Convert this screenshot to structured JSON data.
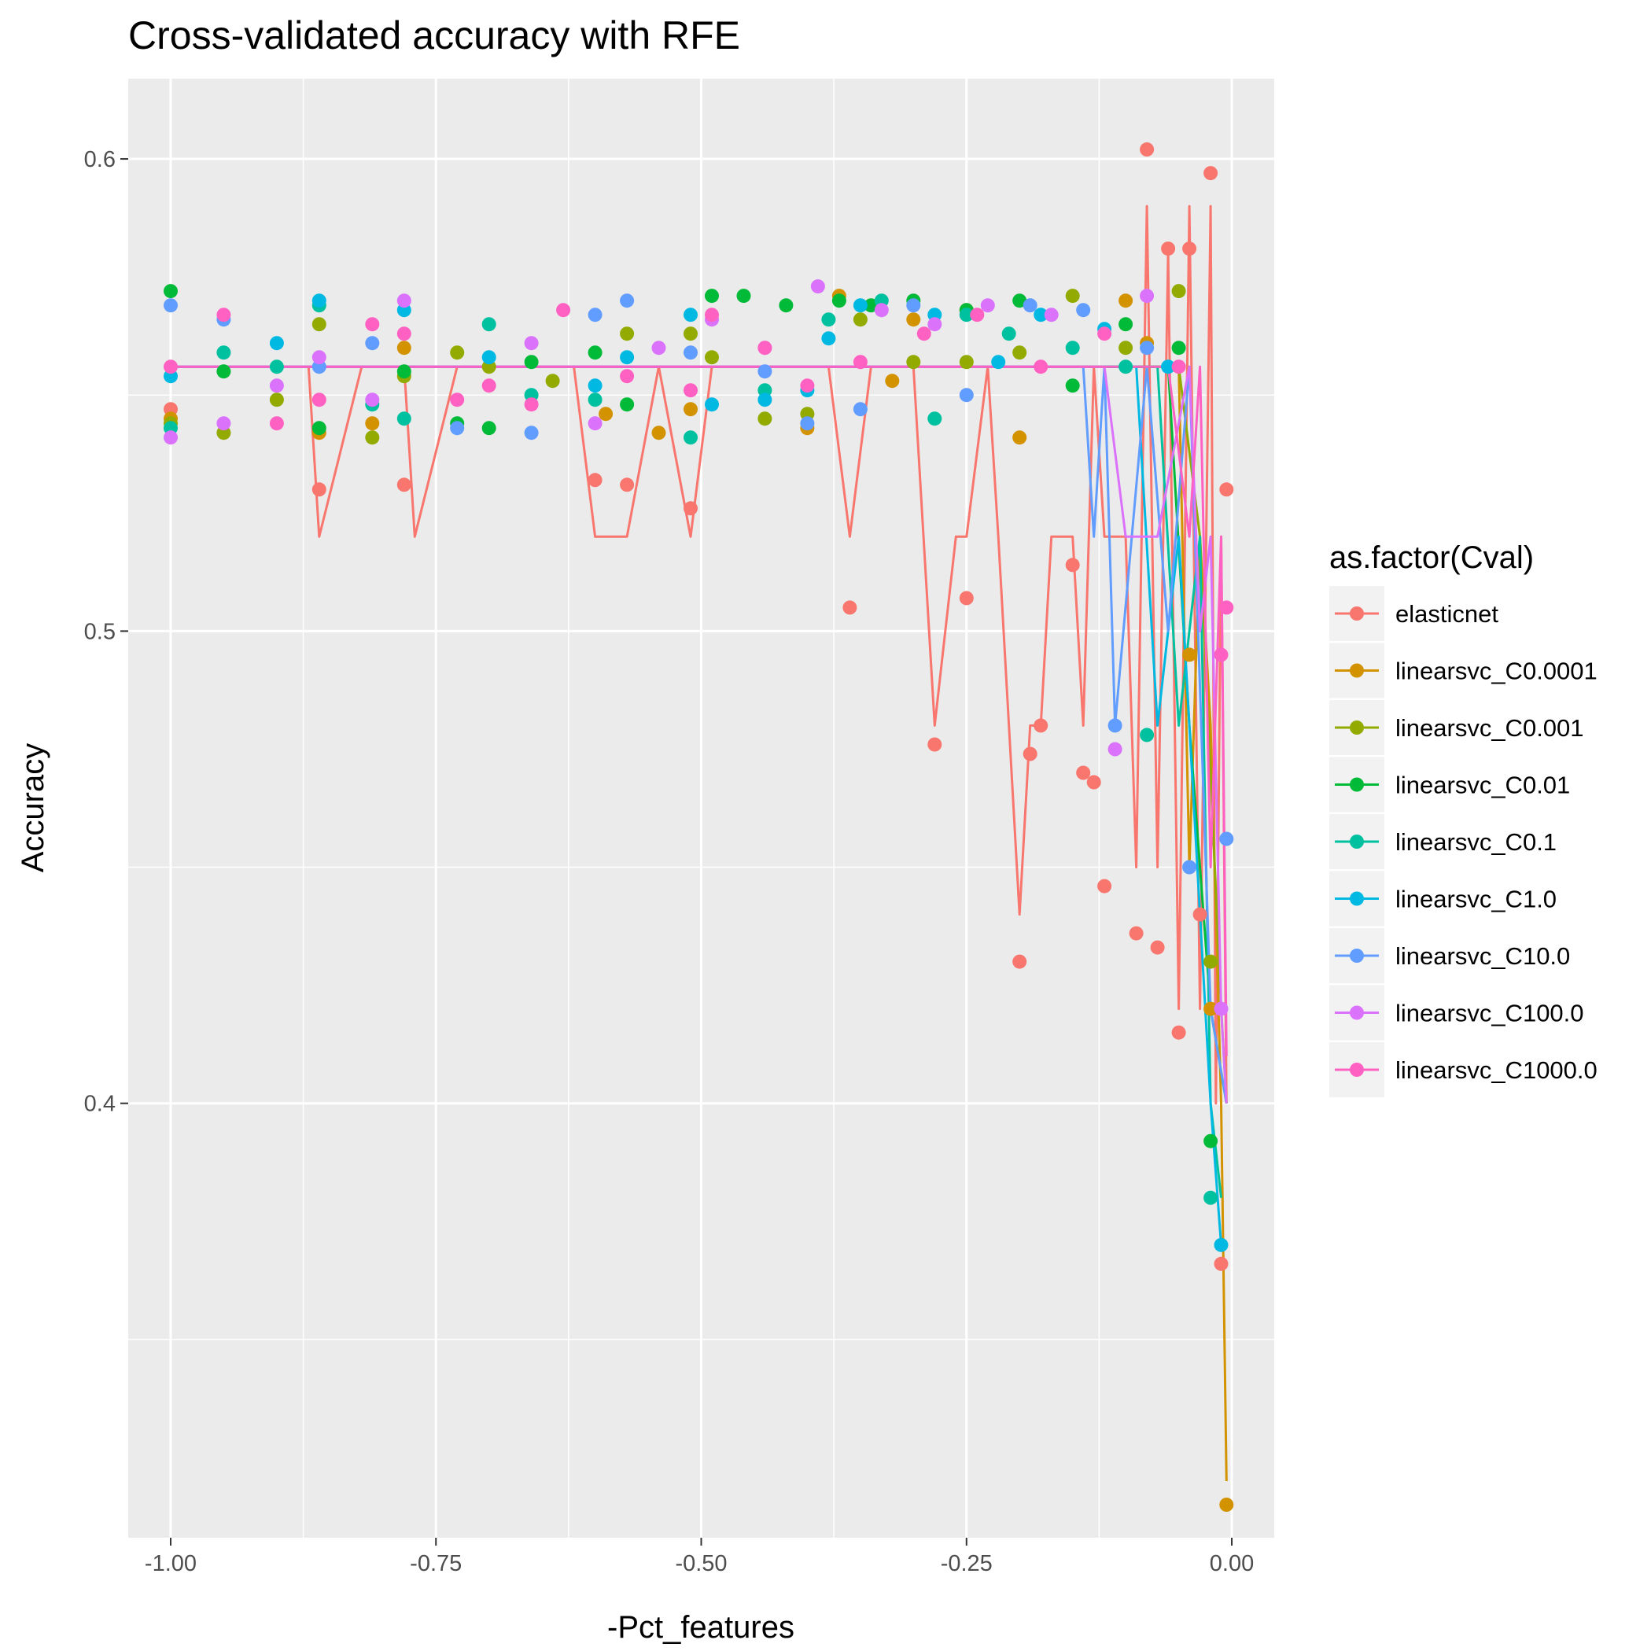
{
  "chart_data": {
    "type": "scatter",
    "title": "Cross-validated accuracy with RFE",
    "xlabel": "-Pct_features",
    "ylabel": "Accuracy",
    "xlim": [
      -1.04,
      0.04
    ],
    "ylim": [
      0.308,
      0.617
    ],
    "x_ticks": [
      -1.0,
      -0.75,
      -0.5,
      -0.25,
      0.0
    ],
    "x_tick_labels": [
      "-1.00",
      "-0.75",
      "-0.50",
      "-0.25",
      "0.00"
    ],
    "y_ticks": [
      0.4,
      0.5,
      0.6
    ],
    "y_tick_labels": [
      "0.4",
      "0.5",
      "0.6"
    ],
    "grid": true,
    "legend": {
      "title": "as.factor(Cval)",
      "position": "right"
    },
    "series": [
      {
        "name": "elasticnet",
        "color": "#F8766D",
        "line": [
          [
            -1.0,
            0.556
          ],
          [
            -0.87,
            0.556
          ],
          [
            -0.86,
            0.52
          ],
          [
            -0.82,
            0.556
          ],
          [
            -0.78,
            0.556
          ],
          [
            -0.77,
            0.52
          ],
          [
            -0.73,
            0.556
          ],
          [
            -0.62,
            0.556
          ],
          [
            -0.6,
            0.52
          ],
          [
            -0.57,
            0.52
          ],
          [
            -0.54,
            0.556
          ],
          [
            -0.51,
            0.52
          ],
          [
            -0.49,
            0.556
          ],
          [
            -0.38,
            0.556
          ],
          [
            -0.36,
            0.52
          ],
          [
            -0.34,
            0.556
          ],
          [
            -0.3,
            0.556
          ],
          [
            -0.28,
            0.48
          ],
          [
            -0.26,
            0.52
          ],
          [
            -0.25,
            0.52
          ],
          [
            -0.23,
            0.556
          ],
          [
            -0.22,
            0.52
          ],
          [
            -0.2,
            0.44
          ],
          [
            -0.19,
            0.48
          ],
          [
            -0.18,
            0.48
          ],
          [
            -0.17,
            0.52
          ],
          [
            -0.15,
            0.52
          ],
          [
            -0.14,
            0.48
          ],
          [
            -0.13,
            0.556
          ],
          [
            -0.12,
            0.52
          ],
          [
            -0.1,
            0.52
          ],
          [
            -0.09,
            0.45
          ],
          [
            -0.08,
            0.59
          ],
          [
            -0.07,
            0.45
          ],
          [
            -0.06,
            0.58
          ],
          [
            -0.05,
            0.42
          ],
          [
            -0.04,
            0.59
          ],
          [
            -0.03,
            0.42
          ],
          [
            -0.02,
            0.59
          ],
          [
            -0.015,
            0.4
          ],
          [
            -0.01,
            0.52
          ],
          [
            -0.005,
            0.4
          ]
        ],
        "points": [
          [
            -1.0,
            0.547
          ],
          [
            -0.86,
            0.53
          ],
          [
            -0.78,
            0.531
          ],
          [
            -0.6,
            0.532
          ],
          [
            -0.57,
            0.531
          ],
          [
            -0.51,
            0.526
          ],
          [
            -0.36,
            0.505
          ],
          [
            -0.28,
            0.476
          ],
          [
            -0.25,
            0.507
          ],
          [
            -0.2,
            0.43
          ],
          [
            -0.19,
            0.474
          ],
          [
            -0.18,
            0.48
          ],
          [
            -0.15,
            0.514
          ],
          [
            -0.14,
            0.47
          ],
          [
            -0.13,
            0.468
          ],
          [
            -0.12,
            0.446
          ],
          [
            -0.09,
            0.436
          ],
          [
            -0.08,
            0.602
          ],
          [
            -0.07,
            0.433
          ],
          [
            -0.06,
            0.581
          ],
          [
            -0.05,
            0.415
          ],
          [
            -0.04,
            0.581
          ],
          [
            -0.03,
            0.44
          ],
          [
            -0.02,
            0.597
          ],
          [
            -0.01,
            0.366
          ],
          [
            -0.005,
            0.53
          ]
        ]
      },
      {
        "name": "linearsvc_C0.0001",
        "color": "#D39200",
        "line": [
          [
            -1.0,
            0.556
          ],
          [
            -0.05,
            0.556
          ],
          [
            -0.04,
            0.45
          ],
          [
            -0.03,
            0.52
          ],
          [
            -0.02,
            0.48
          ],
          [
            -0.01,
            0.4
          ],
          [
            -0.005,
            0.32
          ]
        ],
        "points": [
          [
            -1.0,
            0.545
          ],
          [
            -0.86,
            0.542
          ],
          [
            -0.81,
            0.544
          ],
          [
            -0.78,
            0.56
          ],
          [
            -0.59,
            0.546
          ],
          [
            -0.54,
            0.542
          ],
          [
            -0.51,
            0.547
          ],
          [
            -0.4,
            0.543
          ],
          [
            -0.37,
            0.571
          ],
          [
            -0.32,
            0.553
          ],
          [
            -0.3,
            0.566
          ],
          [
            -0.25,
            0.568
          ],
          [
            -0.2,
            0.541
          ],
          [
            -0.1,
            0.57
          ],
          [
            -0.08,
            0.561
          ],
          [
            -0.04,
            0.495
          ],
          [
            -0.02,
            0.42
          ],
          [
            -0.005,
            0.315
          ]
        ]
      },
      {
        "name": "linearsvc_C0.001",
        "color": "#93AA00",
        "line": [
          [
            -1.0,
            0.556
          ],
          [
            -0.05,
            0.556
          ],
          [
            -0.03,
            0.52
          ],
          [
            -0.01,
            0.42
          ],
          [
            -0.005,
            0.4
          ]
        ],
        "points": [
          [
            -1.0,
            0.544
          ],
          [
            -0.95,
            0.542
          ],
          [
            -0.9,
            0.549
          ],
          [
            -0.86,
            0.565
          ],
          [
            -0.81,
            0.541
          ],
          [
            -0.78,
            0.554
          ],
          [
            -0.73,
            0.559
          ],
          [
            -0.7,
            0.556
          ],
          [
            -0.64,
            0.553
          ],
          [
            -0.57,
            0.563
          ],
          [
            -0.51,
            0.563
          ],
          [
            -0.49,
            0.558
          ],
          [
            -0.44,
            0.545
          ],
          [
            -0.4,
            0.546
          ],
          [
            -0.35,
            0.566
          ],
          [
            -0.3,
            0.557
          ],
          [
            -0.25,
            0.557
          ],
          [
            -0.2,
            0.559
          ],
          [
            -0.15,
            0.571
          ],
          [
            -0.1,
            0.56
          ],
          [
            -0.05,
            0.572
          ],
          [
            -0.02,
            0.43
          ]
        ]
      },
      {
        "name": "linearsvc_C0.01",
        "color": "#00BA38",
        "line": [
          [
            -1.0,
            0.556
          ],
          [
            -0.06,
            0.556
          ],
          [
            -0.04,
            0.48
          ],
          [
            -0.02,
            0.42
          ],
          [
            -0.005,
            0.4
          ]
        ],
        "points": [
          [
            -1.0,
            0.572
          ],
          [
            -0.95,
            0.555
          ],
          [
            -0.86,
            0.543
          ],
          [
            -0.78,
            0.555
          ],
          [
            -0.73,
            0.544
          ],
          [
            -0.7,
            0.543
          ],
          [
            -0.66,
            0.557
          ],
          [
            -0.6,
            0.559
          ],
          [
            -0.57,
            0.548
          ],
          [
            -0.49,
            0.571
          ],
          [
            -0.46,
            0.571
          ],
          [
            -0.42,
            0.569
          ],
          [
            -0.37,
            0.57
          ],
          [
            -0.34,
            0.569
          ],
          [
            -0.3,
            0.57
          ],
          [
            -0.25,
            0.568
          ],
          [
            -0.2,
            0.57
          ],
          [
            -0.15,
            0.552
          ],
          [
            -0.1,
            0.565
          ],
          [
            -0.05,
            0.56
          ],
          [
            -0.02,
            0.392
          ]
        ]
      },
      {
        "name": "linearsvc_C0.1",
        "color": "#00C19F",
        "line": [
          [
            -1.0,
            0.556
          ],
          [
            -0.07,
            0.556
          ],
          [
            -0.05,
            0.48
          ],
          [
            -0.03,
            0.52
          ],
          [
            -0.02,
            0.4
          ],
          [
            -0.01,
            0.38
          ]
        ],
        "points": [
          [
            -1.0,
            0.543
          ],
          [
            -0.95,
            0.559
          ],
          [
            -0.9,
            0.556
          ],
          [
            -0.86,
            0.569
          ],
          [
            -0.81,
            0.548
          ],
          [
            -0.78,
            0.545
          ],
          [
            -0.7,
            0.565
          ],
          [
            -0.66,
            0.55
          ],
          [
            -0.6,
            0.549
          ],
          [
            -0.51,
            0.541
          ],
          [
            -0.44,
            0.551
          ],
          [
            -0.38,
            0.566
          ],
          [
            -0.33,
            0.57
          ],
          [
            -0.28,
            0.545
          ],
          [
            -0.25,
            0.567
          ],
          [
            -0.21,
            0.563
          ],
          [
            -0.15,
            0.56
          ],
          [
            -0.1,
            0.556
          ],
          [
            -0.08,
            0.478
          ],
          [
            -0.02,
            0.38
          ]
        ]
      },
      {
        "name": "linearsvc_C1.0",
        "color": "#00B9E3",
        "line": [
          [
            -1.0,
            0.556
          ],
          [
            -0.09,
            0.556
          ],
          [
            -0.07,
            0.48
          ],
          [
            -0.05,
            0.52
          ],
          [
            -0.02,
            0.4
          ],
          [
            -0.01,
            0.37
          ]
        ],
        "points": [
          [
            -1.0,
            0.554
          ],
          [
            -0.9,
            0.561
          ],
          [
            -0.86,
            0.57
          ],
          [
            -0.78,
            0.568
          ],
          [
            -0.7,
            0.558
          ],
          [
            -0.6,
            0.552
          ],
          [
            -0.57,
            0.558
          ],
          [
            -0.51,
            0.567
          ],
          [
            -0.49,
            0.548
          ],
          [
            -0.44,
            0.549
          ],
          [
            -0.4,
            0.551
          ],
          [
            -0.38,
            0.562
          ],
          [
            -0.35,
            0.569
          ],
          [
            -0.28,
            0.567
          ],
          [
            -0.22,
            0.557
          ],
          [
            -0.18,
            0.567
          ],
          [
            -0.12,
            0.564
          ],
          [
            -0.06,
            0.556
          ],
          [
            -0.01,
            0.37
          ]
        ]
      },
      {
        "name": "linearsvc_C10.0",
        "color": "#619CFF",
        "line": [
          [
            -1.0,
            0.556
          ],
          [
            -0.14,
            0.556
          ],
          [
            -0.13,
            0.52
          ],
          [
            -0.12,
            0.556
          ],
          [
            -0.11,
            0.48
          ],
          [
            -0.08,
            0.556
          ],
          [
            -0.06,
            0.5
          ],
          [
            -0.04,
            0.556
          ],
          [
            -0.02,
            0.42
          ],
          [
            -0.005,
            0.4
          ]
        ],
        "points": [
          [
            -1.0,
            0.569
          ],
          [
            -0.95,
            0.566
          ],
          [
            -0.86,
            0.556
          ],
          [
            -0.81,
            0.561
          ],
          [
            -0.73,
            0.543
          ],
          [
            -0.66,
            0.542
          ],
          [
            -0.6,
            0.567
          ],
          [
            -0.57,
            0.57
          ],
          [
            -0.51,
            0.559
          ],
          [
            -0.44,
            0.555
          ],
          [
            -0.4,
            0.544
          ],
          [
            -0.35,
            0.547
          ],
          [
            -0.3,
            0.569
          ],
          [
            -0.25,
            0.55
          ],
          [
            -0.19,
            0.569
          ],
          [
            -0.14,
            0.568
          ],
          [
            -0.11,
            0.48
          ],
          [
            -0.08,
            0.56
          ],
          [
            -0.04,
            0.45
          ],
          [
            -0.005,
            0.456
          ]
        ]
      },
      {
        "name": "linearsvc_C100.0",
        "color": "#DB72FB",
        "line": [
          [
            -1.0,
            0.556
          ],
          [
            -0.12,
            0.556
          ],
          [
            -0.1,
            0.52
          ],
          [
            -0.07,
            0.52
          ],
          [
            -0.04,
            0.556
          ],
          [
            -0.03,
            0.5
          ],
          [
            -0.02,
            0.52
          ],
          [
            -0.01,
            0.42
          ],
          [
            -0.005,
            0.4
          ]
        ],
        "points": [
          [
            -1.0,
            0.541
          ],
          [
            -0.95,
            0.544
          ],
          [
            -0.9,
            0.552
          ],
          [
            -0.86,
            0.558
          ],
          [
            -0.81,
            0.549
          ],
          [
            -0.78,
            0.57
          ],
          [
            -0.66,
            0.561
          ],
          [
            -0.6,
            0.544
          ],
          [
            -0.54,
            0.56
          ],
          [
            -0.49,
            0.566
          ],
          [
            -0.44,
            0.56
          ],
          [
            -0.39,
            0.573
          ],
          [
            -0.33,
            0.568
          ],
          [
            -0.28,
            0.565
          ],
          [
            -0.23,
            0.569
          ],
          [
            -0.17,
            0.567
          ],
          [
            -0.11,
            0.475
          ],
          [
            -0.08,
            0.571
          ],
          [
            -0.01,
            0.42
          ]
        ]
      },
      {
        "name": "linearsvc_C1000.0",
        "color": "#FF61C3",
        "line": [
          [
            -1.0,
            0.556
          ],
          [
            -0.06,
            0.556
          ],
          [
            -0.04,
            0.52
          ],
          [
            -0.03,
            0.556
          ],
          [
            -0.02,
            0.45
          ],
          [
            -0.01,
            0.52
          ],
          [
            -0.005,
            0.41
          ]
        ],
        "points": [
          [
            -1.0,
            0.556
          ],
          [
            -0.95,
            0.567
          ],
          [
            -0.9,
            0.544
          ],
          [
            -0.86,
            0.549
          ],
          [
            -0.81,
            0.565
          ],
          [
            -0.78,
            0.563
          ],
          [
            -0.73,
            0.549
          ],
          [
            -0.7,
            0.552
          ],
          [
            -0.66,
            0.548
          ],
          [
            -0.63,
            0.568
          ],
          [
            -0.57,
            0.554
          ],
          [
            -0.51,
            0.551
          ],
          [
            -0.49,
            0.567
          ],
          [
            -0.44,
            0.56
          ],
          [
            -0.4,
            0.552
          ],
          [
            -0.35,
            0.557
          ],
          [
            -0.29,
            0.563
          ],
          [
            -0.24,
            0.567
          ],
          [
            -0.18,
            0.556
          ],
          [
            -0.12,
            0.563
          ],
          [
            -0.05,
            0.556
          ],
          [
            -0.01,
            0.495
          ],
          [
            -0.005,
            0.505
          ]
        ]
      }
    ]
  }
}
